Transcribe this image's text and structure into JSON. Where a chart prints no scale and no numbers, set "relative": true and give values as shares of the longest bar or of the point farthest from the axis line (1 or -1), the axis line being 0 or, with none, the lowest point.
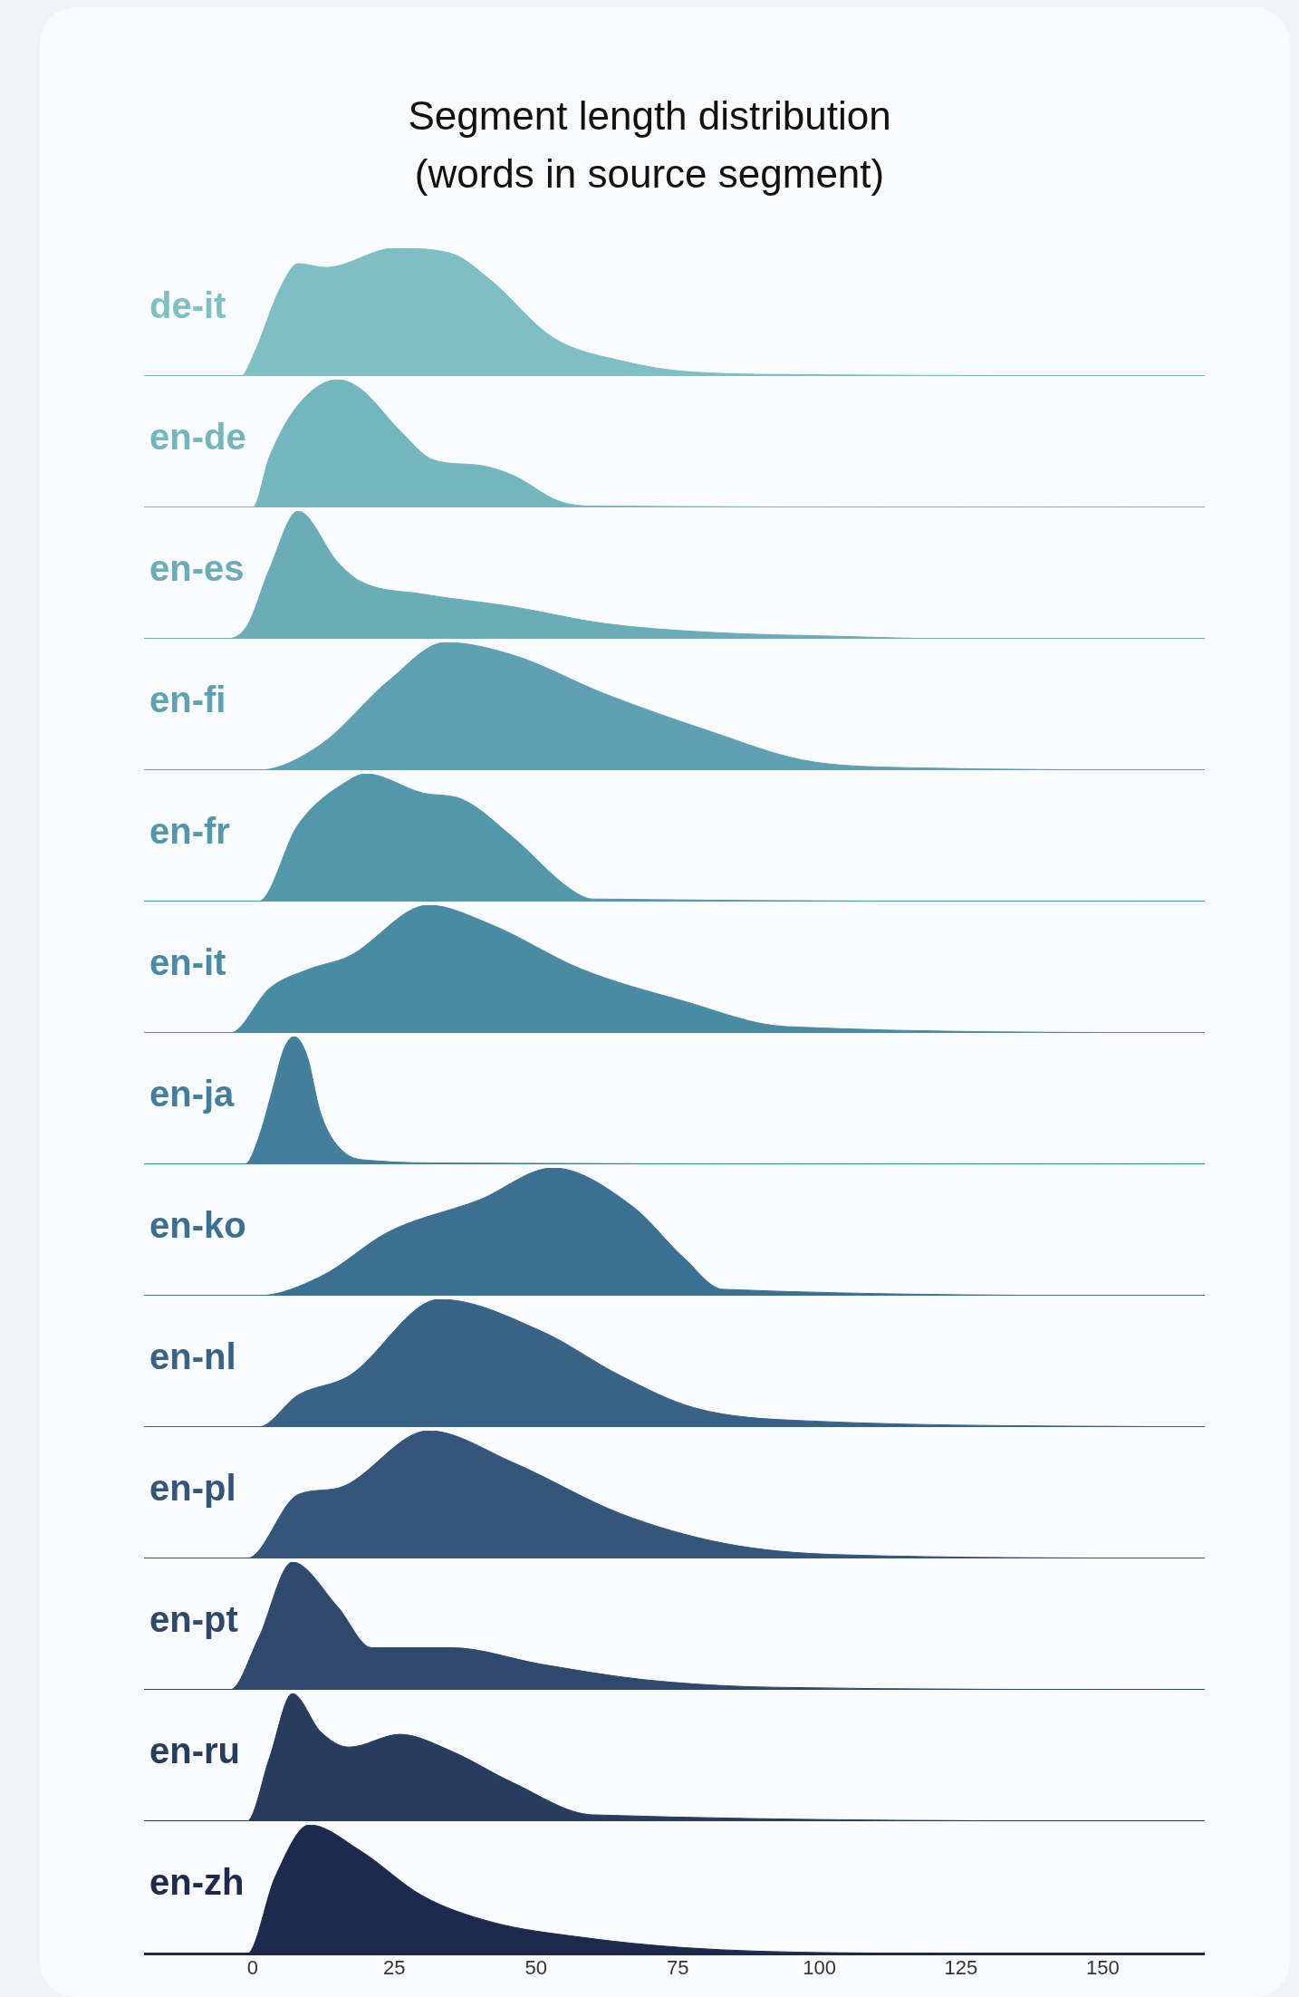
{
  "chart_data": [
    {
      "type": "area",
      "title": "Segment length distribution\n(words in source segment)",
      "relative": true,
      "xlim": [
        -19,
        168
      ],
      "tick_labels": false,
      "grid": false,
      "series": [
        {
          "name": "de-it",
          "color": "#7dbfc3",
          "x": [
            -19,
            -2,
            0,
            5,
            8,
            13,
            25,
            35,
            42,
            53,
            65,
            78,
            100,
            168
          ],
          "values": [
            0,
            0,
            0.15,
            0.7,
            0.88,
            0.85,
            1,
            0.96,
            0.75,
            0.3,
            0.12,
            0.03,
            0.01,
            0
          ]
        }
      ]
    },
    {
      "type": "area",
      "relative": true,
      "xlim": [
        -19,
        168
      ],
      "tick_labels": false,
      "grid": false,
      "series": [
        {
          "name": "en-de",
          "color": "#74b6be",
          "x": [
            -19,
            0,
            3,
            8,
            15,
            19,
            26,
            32,
            40,
            46,
            54,
            60,
            168
          ],
          "values": [
            0,
            0,
            0.4,
            0.8,
            1,
            0.93,
            0.6,
            0.37,
            0.33,
            0.25,
            0.05,
            0.01,
            0
          ]
        }
      ]
    },
    {
      "type": "area",
      "relative": true,
      "xlim": [
        -19,
        168
      ],
      "tick_labels": false,
      "grid": false,
      "series": [
        {
          "name": "en-es",
          "color": "#6aacb8",
          "x": [
            -19,
            -5,
            -1,
            3,
            8,
            15,
            19,
            30,
            46,
            62,
            81,
            103,
            124,
            168
          ],
          "values": [
            0,
            0,
            0.1,
            0.55,
            1,
            0.6,
            0.45,
            0.35,
            0.25,
            0.12,
            0.05,
            0.02,
            0,
            0
          ]
        }
      ]
    },
    {
      "type": "area",
      "relative": true,
      "xlim": [
        -19,
        168
      ],
      "tick_labels": false,
      "grid": false,
      "series": [
        {
          "name": "en-fi",
          "color": "#5fa1b2",
          "x": [
            -19,
            1,
            12,
            24,
            34,
            46,
            62,
            81,
            97,
            115,
            168
          ],
          "values": [
            0,
            0,
            0.2,
            0.7,
            1,
            0.9,
            0.6,
            0.3,
            0.08,
            0.02,
            0
          ]
        }
      ]
    },
    {
      "type": "area",
      "relative": true,
      "xlim": [
        -19,
        168
      ],
      "tick_labels": false,
      "grid": false,
      "series": [
        {
          "name": "en-fr",
          "color": "#5397ab",
          "x": [
            -19,
            1,
            8,
            17,
            20,
            30,
            37,
            46,
            56,
            60,
            168
          ],
          "values": [
            0,
            0,
            0.6,
            0.95,
            1,
            0.85,
            0.8,
            0.5,
            0.1,
            0.02,
            0
          ]
        }
      ]
    },
    {
      "type": "area",
      "relative": true,
      "xlim": [
        -19,
        168
      ],
      "tick_labels": false,
      "grid": false,
      "series": [
        {
          "name": "en-it",
          "color": "#4a8ba4",
          "x": [
            -19,
            -4,
            3,
            10,
            17,
            31,
            42,
            58,
            76,
            94,
            168
          ],
          "values": [
            0,
            0,
            0.35,
            0.5,
            0.6,
            1,
            0.85,
            0.5,
            0.25,
            0.05,
            0
          ]
        }
      ]
    },
    {
      "type": "area",
      "relative": true,
      "xlim": [
        -19,
        168
      ],
      "tick_labels": false,
      "grid": false,
      "series": [
        {
          "name": "en-ja",
          "color": "#437f9c",
          "x": [
            -19,
            -1.4,
            1,
            3.6,
            5.5,
            7.3,
            9.6,
            12,
            16,
            21,
            35,
            168
          ],
          "values": [
            0,
            0,
            0.2,
            0.6,
            0.9,
            1,
            0.85,
            0.4,
            0.1,
            0.03,
            0.01,
            0
          ]
        }
      ]
    },
    {
      "type": "area",
      "relative": true,
      "xlim": [
        -19,
        168
      ],
      "tick_labels": false,
      "grid": false,
      "series": [
        {
          "name": "en-ko",
          "color": "#3c7092",
          "x": [
            -19,
            1,
            12,
            24,
            40,
            53,
            67,
            76,
            83,
            168
          ],
          "values": [
            0,
            0,
            0.15,
            0.5,
            0.75,
            1,
            0.7,
            0.3,
            0.05,
            0
          ]
        }
      ]
    },
    {
      "type": "area",
      "relative": true,
      "xlim": [
        -19,
        168
      ],
      "tick_labels": false,
      "grid": false,
      "series": [
        {
          "name": "en-nl",
          "color": "#386386",
          "x": [
            -19,
            1,
            8,
            17,
            33,
            51,
            65,
            78,
            97,
            168
          ],
          "values": [
            0,
            0,
            0.25,
            0.4,
            1,
            0.75,
            0.4,
            0.15,
            0.05,
            0
          ]
        }
      ]
    },
    {
      "type": "area",
      "relative": true,
      "xlim": [
        -19,
        168
      ],
      "tick_labels": false,
      "grid": false,
      "series": [
        {
          "name": "en-pl",
          "color": "#33567a",
          "x": [
            -19,
            -1,
            8,
            15,
            31,
            46,
            65,
            83,
            103,
            168
          ],
          "values": [
            0,
            0,
            0.5,
            0.55,
            1,
            0.75,
            0.35,
            0.12,
            0.03,
            0
          ]
        }
      ]
    },
    {
      "type": "area",
      "relative": true,
      "xlim": [
        -19,
        168
      ],
      "tick_labels": false,
      "grid": false,
      "series": [
        {
          "name": "en-pt",
          "color": "#2e496c",
          "x": [
            -19,
            -4,
            1,
            7,
            15,
            21,
            35,
            51,
            69,
            92,
            168
          ],
          "values": [
            0,
            0,
            0.4,
            1,
            0.65,
            0.33,
            0.33,
            0.2,
            0.08,
            0.02,
            0
          ]
        }
      ]
    },
    {
      "type": "area",
      "relative": true,
      "xlim": [
        -19,
        168
      ],
      "tick_labels": false,
      "grid": false,
      "series": [
        {
          "name": "en-ru",
          "color": "#283c5e",
          "x": [
            -19,
            -1,
            3,
            7,
            12,
            17,
            26,
            35,
            46,
            60,
            168
          ],
          "values": [
            0,
            0,
            0.5,
            1,
            0.7,
            0.58,
            0.68,
            0.55,
            0.3,
            0.05,
            0
          ]
        }
      ]
    },
    {
      "type": "area",
      "relative": true,
      "xlim": [
        -19,
        168
      ],
      "xticks": [
        0,
        25,
        50,
        75,
        100,
        125,
        150
      ],
      "tick_labels": "x",
      "grid": false,
      "series": [
        {
          "name": "en-zh",
          "color": "#1d2a4d",
          "x": [
            -19,
            -1,
            4,
            10,
            19,
            30,
            42,
            58,
            76,
            103,
            168
          ],
          "values": [
            0,
            0,
            0.6,
            1,
            0.8,
            0.45,
            0.25,
            0.13,
            0.05,
            0.01,
            0
          ]
        }
      ]
    }
  ]
}
